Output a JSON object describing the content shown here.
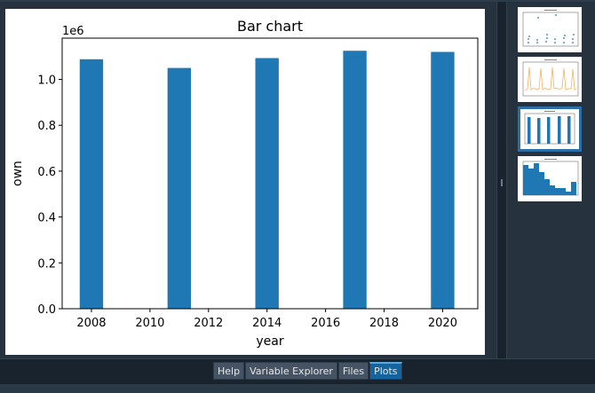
{
  "chart_data": {
    "type": "bar",
    "title": "Bar chart",
    "xlabel": "year",
    "ylabel": "own",
    "offset_text": "1e6",
    "x": [
      2008,
      2011,
      2014,
      2017,
      2020
    ],
    "values": [
      1088000,
      1050000,
      1093000,
      1125000,
      1120000
    ],
    "xlim": [
      2007,
      2021.2
    ],
    "ylim": [
      0,
      1180000
    ],
    "xticks": [
      2008,
      2010,
      2012,
      2014,
      2016,
      2018,
      2020
    ],
    "yticks": [
      0,
      200000,
      400000,
      600000,
      800000,
      1000000
    ],
    "ytick_labels": [
      "0.0",
      "0.2",
      "0.4",
      "0.6",
      "0.8",
      "1.0"
    ],
    "bar_color": "#1f77b4",
    "grid": false
  },
  "thumbnails": [
    {
      "id": "scatter",
      "selected": false
    },
    {
      "id": "line",
      "selected": false
    },
    {
      "id": "bar",
      "selected": true
    },
    {
      "id": "histogram",
      "selected": false
    }
  ],
  "tabs": [
    {
      "label": "Help",
      "active": false
    },
    {
      "label": "Variable Explorer",
      "active": false
    },
    {
      "label": "Files",
      "active": false
    },
    {
      "label": "Plots",
      "active": true
    }
  ]
}
